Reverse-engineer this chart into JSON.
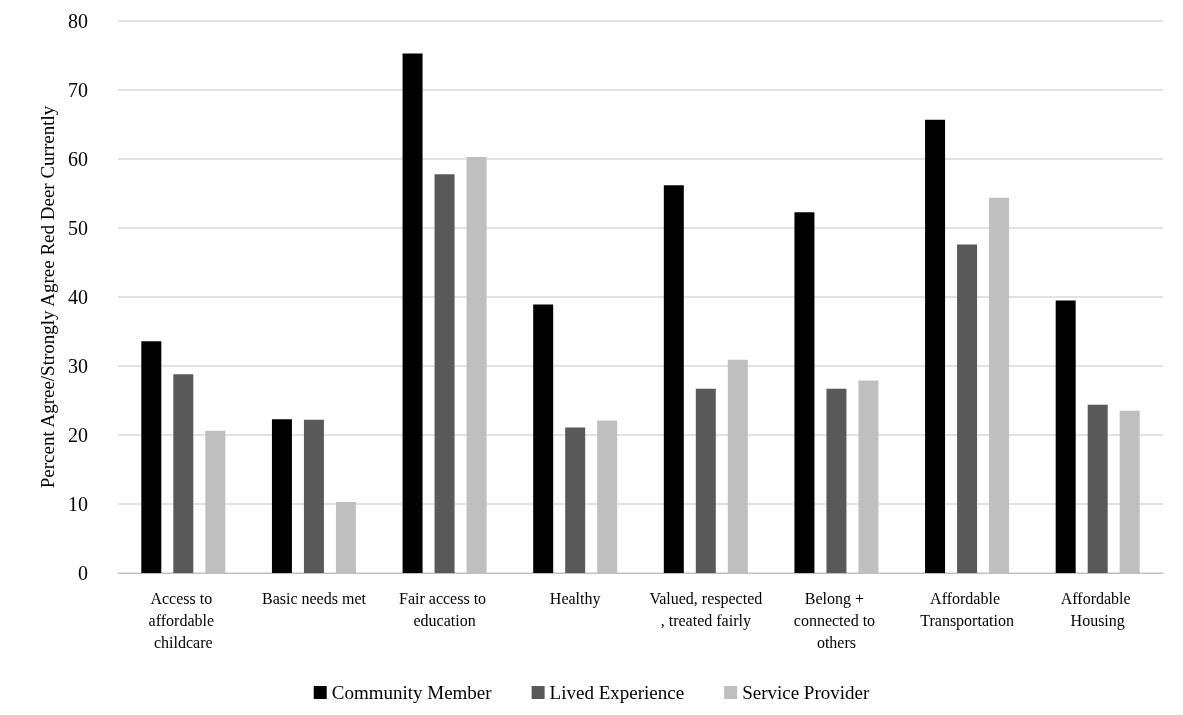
{
  "chart_data": {
    "type": "bar",
    "ylabel": "Percent Agree/Strongly Agree Red Deer Currently",
    "categories": [
      "Access to affordable childcare",
      "Basic needs met",
      "Fair access to education",
      "Healthy",
      "Valued, respected, treated fairly",
      "Belong + connected to others",
      "Affordable Transportation",
      "Affordable Housing"
    ],
    "series": [
      {
        "name": "Community Member",
        "color": "#000000",
        "values": [
          33.6,
          22.3,
          75.3,
          38.9,
          56.2,
          52.3,
          65.7,
          39.5
        ]
      },
      {
        "name": "Lived Experience",
        "color": "#595959",
        "values": [
          28.8,
          22.2,
          57.8,
          21.1,
          26.7,
          26.7,
          47.6,
          24.4
        ]
      },
      {
        "name": "Service Provider",
        "color": "#bfbfbf",
        "values": [
          20.6,
          10.3,
          60.3,
          22.1,
          30.9,
          27.9,
          54.4,
          23.5
        ]
      }
    ],
    "ylim": [
      0,
      80
    ],
    "yticks": [
      0,
      10,
      20,
      30,
      40,
      50,
      60,
      70,
      80
    ],
    "grid": "y",
    "legend": "bottom"
  }
}
